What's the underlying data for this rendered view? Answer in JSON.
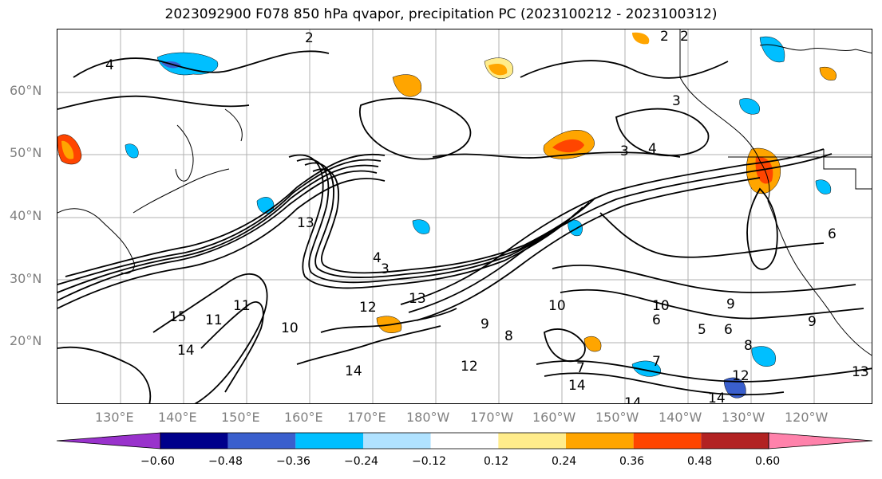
{
  "title": "2023092900 F078 850 hPa qvapor, precipitation PC (2023100212 - 2023100312)",
  "map": {
    "lat_labels": [
      "60°N",
      "50°N",
      "40°N",
      "30°N",
      "20°N"
    ],
    "lon_labels": [
      "130°E",
      "140°E",
      "150°E",
      "160°E",
      "170°E",
      "180°W",
      "170°W",
      "160°W",
      "150°W",
      "140°W",
      "130°W",
      "120°W"
    ],
    "contour_labels": [
      "2",
      "2",
      "2",
      "4",
      "3",
      "4",
      "3",
      "13",
      "4",
      "3",
      "15",
      "11",
      "11",
      "14",
      "12",
      "13",
      "10",
      "10",
      "9",
      "10",
      "9",
      "8",
      "7",
      "6",
      "5",
      "6",
      "7",
      "8",
      "9",
      "14",
      "14",
      "14",
      "13",
      "12",
      "12",
      "14",
      "6"
    ]
  },
  "colorbar": {
    "ticks": [
      "−0.60",
      "−0.48",
      "−0.36",
      "−0.24",
      "−0.12",
      "0.12",
      "0.24",
      "0.36",
      "0.48",
      "0.60"
    ],
    "colors": [
      "#9932cc",
      "#00008b",
      "#3a5fcd",
      "#00bfff",
      "#b0e2ff",
      "#ffffff",
      "#ffec8b",
      "#ffa500",
      "#ff4500",
      "#b22222",
      "#ff82ab"
    ]
  }
}
